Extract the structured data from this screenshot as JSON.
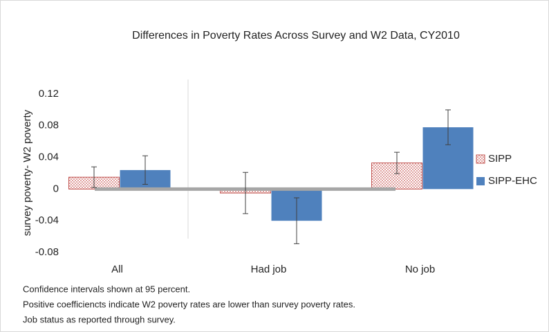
{
  "chart_data": {
    "type": "bar",
    "title": "Differences in Poverty Rates Across Survey and W2 Data, CY2010",
    "y_label": "survey poverty- W2 poverty",
    "categories": [
      "All",
      "Had job",
      "No job"
    ],
    "series": [
      {
        "name": "SIPP",
        "color": "#c0504d",
        "values": [
          0.015,
          -0.005,
          0.033
        ],
        "errors": [
          0.013,
          0.026,
          0.0135
        ]
      },
      {
        "name": "SIPP-EHC",
        "color": "#4f81bd",
        "values": [
          0.024,
          -0.04,
          0.078
        ],
        "errors": [
          0.018,
          0.029,
          0.022
        ]
      }
    ],
    "ylim": [
      -0.08,
      0.14
    ],
    "yticks": [
      -0.08,
      -0.04,
      0,
      0.04,
      0.08,
      0.12
    ],
    "legend": "right",
    "notes": [
      "Confidence intervals shown at 95 percent.",
      "Positive coefficiencts indicate W2 poverty rates are lower than survey poverty rates.",
      "Job status as reported through survey."
    ]
  }
}
